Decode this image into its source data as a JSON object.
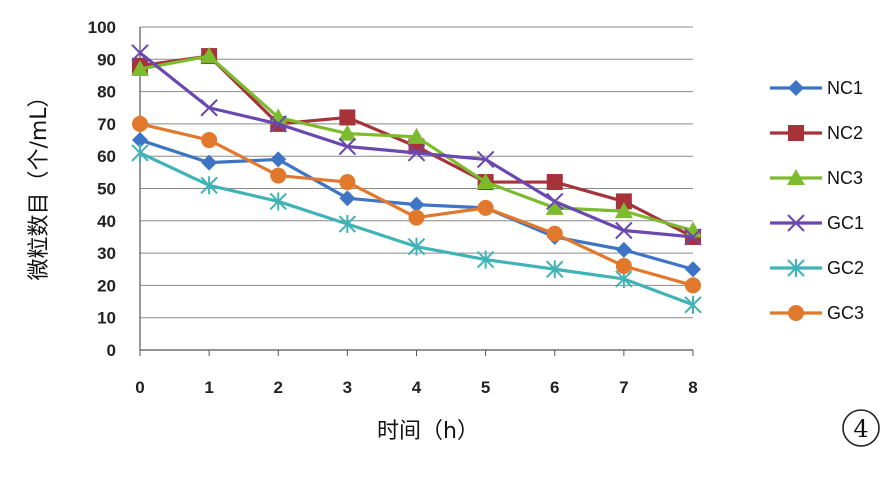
{
  "chart_data": {
    "type": "line",
    "xlabel": "时间（h）",
    "ylabel": "微粒数目（个/mL）",
    "x": [
      0,
      1,
      2,
      3,
      4,
      5,
      6,
      7,
      8
    ],
    "xticks": [
      "0",
      "1",
      "2",
      "3",
      "4",
      "5",
      "6",
      "7",
      "8"
    ],
    "yticks": [
      "0",
      "10",
      "20",
      "30",
      "40",
      "50",
      "60",
      "70",
      "80",
      "90",
      "100"
    ],
    "ylim": [
      0,
      100
    ],
    "grid": "horizontal",
    "legend_position": "right",
    "series": [
      {
        "name": "NC1",
        "color": "#3d74c6",
        "marker": "diamond",
        "values": [
          65,
          58,
          59,
          47,
          45,
          44,
          35,
          31,
          25
        ]
      },
      {
        "name": "NC2",
        "color": "#a8323a",
        "marker": "square",
        "values": [
          88,
          91,
          70,
          72,
          63,
          52,
          52,
          46,
          35
        ]
      },
      {
        "name": "NC3",
        "color": "#7dbb2e",
        "marker": "triangle",
        "values": [
          87,
          91,
          72,
          67,
          66,
          52,
          44,
          43,
          37
        ]
      },
      {
        "name": "GC1",
        "color": "#6a48b0",
        "marker": "x",
        "values": [
          92,
          75,
          70,
          63,
          61,
          59,
          46,
          37,
          35
        ]
      },
      {
        "name": "GC2",
        "color": "#3fb3b6",
        "marker": "star",
        "values": [
          61,
          51,
          46,
          39,
          32,
          28,
          25,
          22,
          14
        ]
      },
      {
        "name": "GC3",
        "color": "#e2782c",
        "marker": "circle",
        "values": [
          70,
          65,
          54,
          52,
          41,
          44,
          36,
          26,
          20
        ]
      }
    ]
  },
  "badge": {
    "text": "4"
  }
}
